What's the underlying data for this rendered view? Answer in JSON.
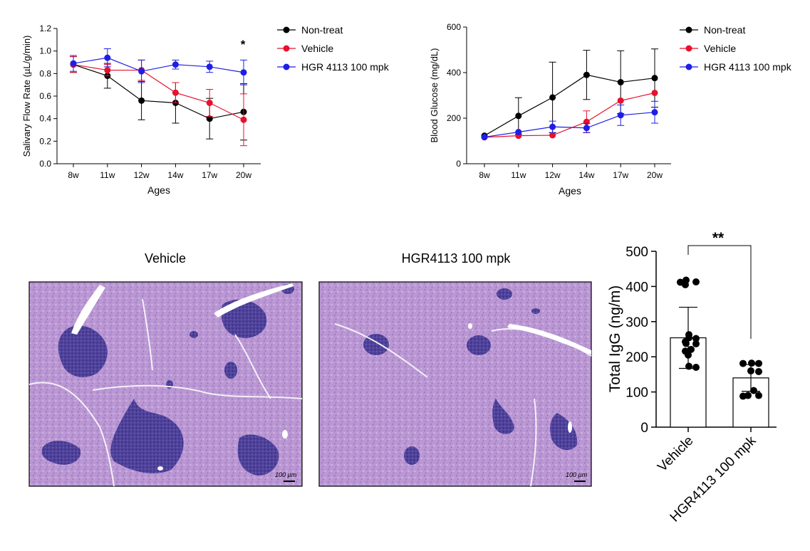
{
  "chart_data": [
    {
      "type": "line",
      "xlabel": "Ages",
      "ylabel": "Salivary Flow Rate (µL/g/min)",
      "categories": [
        "8w",
        "11w",
        "12w",
        "14w",
        "17w",
        "20w"
      ],
      "ylim": [
        0,
        1.2
      ],
      "yticks": [
        "0.0",
        "0.2",
        "0.4",
        "0.6",
        "0.8",
        "1.0",
        "1.2"
      ],
      "annotation": "*",
      "legend_position": "right",
      "series": [
        {
          "name": "Non-treat",
          "color": "#000000",
          "values": [
            0.88,
            0.78,
            0.56,
            0.54,
            0.4,
            0.46
          ],
          "errors": [
            0.07,
            0.11,
            0.17,
            0.18,
            0.18,
            0.25
          ]
        },
        {
          "name": "Vehicle",
          "color": "#e8112d",
          "values": [
            0.88,
            0.83,
            0.83,
            0.63,
            0.54,
            0.39
          ],
          "errors": [
            0.07,
            0.05,
            0.09,
            0.09,
            0.12,
            0.23
          ]
        },
        {
          "name": "HGR 4113 100 mpk",
          "color": "#1e1ee6",
          "values": [
            0.89,
            0.94,
            0.82,
            0.88,
            0.86,
            0.81
          ],
          "errors": [
            0.07,
            0.08,
            0.1,
            0.04,
            0.05,
            0.11
          ]
        }
      ]
    },
    {
      "type": "line",
      "xlabel": "Ages",
      "ylabel": "Blood Glucose (mg/dL)",
      "categories": [
        "8w",
        "11w",
        "12w",
        "14w",
        "17w",
        "20w"
      ],
      "ylim": [
        0,
        600
      ],
      "yticks": [
        "0",
        "200",
        "400",
        "600"
      ],
      "legend_position": "right",
      "series": [
        {
          "name": "Non-treat",
          "color": "#000000",
          "values": [
            123,
            210,
            291,
            390,
            358,
            376
          ],
          "errors": [
            0,
            80,
            155,
            108,
            138,
            128
          ]
        },
        {
          "name": "Vehicle",
          "color": "#e8112d",
          "values": [
            116,
            123,
            125,
            184,
            277,
            311
          ],
          "errors": [
            0,
            0,
            0,
            48,
            0,
            0
          ]
        },
        {
          "name": "HGR 4113 100 mpk",
          "color": "#1e1ee6",
          "values": [
            117,
            139,
            162,
            157,
            213,
            226
          ],
          "errors": [
            0,
            0,
            25,
            20,
            45,
            48
          ]
        }
      ]
    },
    {
      "type": "bar",
      "ylabel": "Total IgG (ng/m)",
      "categories": [
        "Vehicle",
        "HGR4113 100 mpk"
      ],
      "values": [
        254,
        140
      ],
      "errors": [
        87,
        38
      ],
      "ylim": [
        0,
        500
      ],
      "yticks": [
        "0",
        "100",
        "200",
        "300",
        "400",
        "500"
      ],
      "significance": "**",
      "points": [
        [
          418,
          413,
          412,
          405,
          263,
          254,
          252,
          243,
          238,
          237,
          221,
          216,
          205,
          173,
          170
        ],
        [
          182,
          181,
          181,
          160,
          158,
          104,
          90,
          90,
          88
        ]
      ]
    }
  ],
  "histology": {
    "left_title": "Vehicle",
    "right_title": "HGR4113 100 mpk",
    "scale_label": "100 µm"
  },
  "colors": {
    "tissue": "#bd98d6",
    "tissue_dark": "#9a7ec6",
    "infiltrate": "#4a3c98",
    "vessel": "#ffffff"
  }
}
